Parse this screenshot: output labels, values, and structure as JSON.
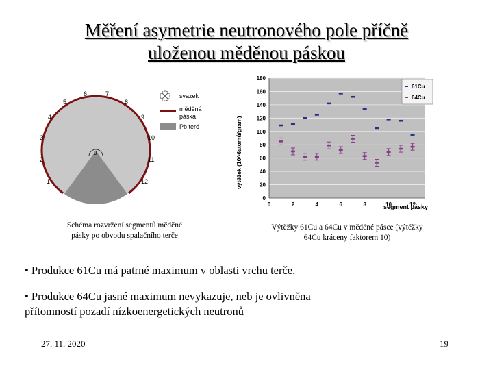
{
  "slide": {
    "title_line1": "Měření asymetrie neutronového pole příčně",
    "title_line2": "uloženou měděnou páskou",
    "bullet1": "• Produkce 61Cu má patrné maximum v oblasti vrchu terče.",
    "bullet2_line1": "• Produkce 64Cu jasné maximum nevykazuje, neb je ovlivněna",
    "bullet2_line2": "přítomností pozadí nízkoenergetických neutronů",
    "date": "27. 11. 2020",
    "page_number": "19"
  },
  "schema": {
    "caption_line1": "Schéma rozvržení segmentů měděné",
    "caption_line2": "pásky po obvodu spalačního terče",
    "segment_labels": [
      "1",
      "2",
      "3",
      "4",
      "5",
      "6",
      "7",
      "8",
      "9",
      "10",
      "11",
      "12"
    ],
    "center_label": "0",
    "legend": {
      "bundle": "svazek",
      "copper_strip_line1": "měděná",
      "copper_strip_line2": "páska",
      "pb_target": "Pb terč"
    },
    "colors": {
      "target": "#c8c8c8",
      "bottom": "#8c8c8c",
      "strip": "#7a1010"
    }
  },
  "plot": {
    "caption_line1": "Výtěžky 61Cu a 64Cu v měděné pásce (výtěžky",
    "caption_line2": "64Cu kráceny faktorem 10)"
  },
  "chart_data": {
    "type": "scatter",
    "xlabel": "segment pásky",
    "ylabel": "výtěžek (10^6atomů/gram)",
    "xlim": [
      0,
      13
    ],
    "ylim": [
      0,
      180
    ],
    "x_ticks": [
      0,
      2,
      4,
      6,
      8,
      10,
      12
    ],
    "y_ticks": [
      0,
      20,
      40,
      60,
      80,
      100,
      120,
      140,
      160,
      180
    ],
    "grid": true,
    "legend_position": "top-right",
    "background": "#c0c0c0",
    "series": [
      {
        "name": "61Cu",
        "color": "#2b2b8a",
        "x": [
          1,
          2,
          3,
          4,
          5,
          6,
          7,
          8,
          9,
          10,
          11,
          12
        ],
        "y": [
          109,
          111,
          120,
          125,
          142,
          157,
          152,
          134,
          105,
          118,
          116,
          95
        ]
      },
      {
        "name": "64Cu",
        "color": "#8a3a8a",
        "x": [
          1,
          2,
          3,
          4,
          5,
          6,
          7,
          8,
          9,
          10,
          11,
          12
        ],
        "y": [
          85,
          70,
          62,
          62,
          79,
          72,
          89,
          63,
          53,
          69,
          74,
          77
        ]
      }
    ]
  }
}
